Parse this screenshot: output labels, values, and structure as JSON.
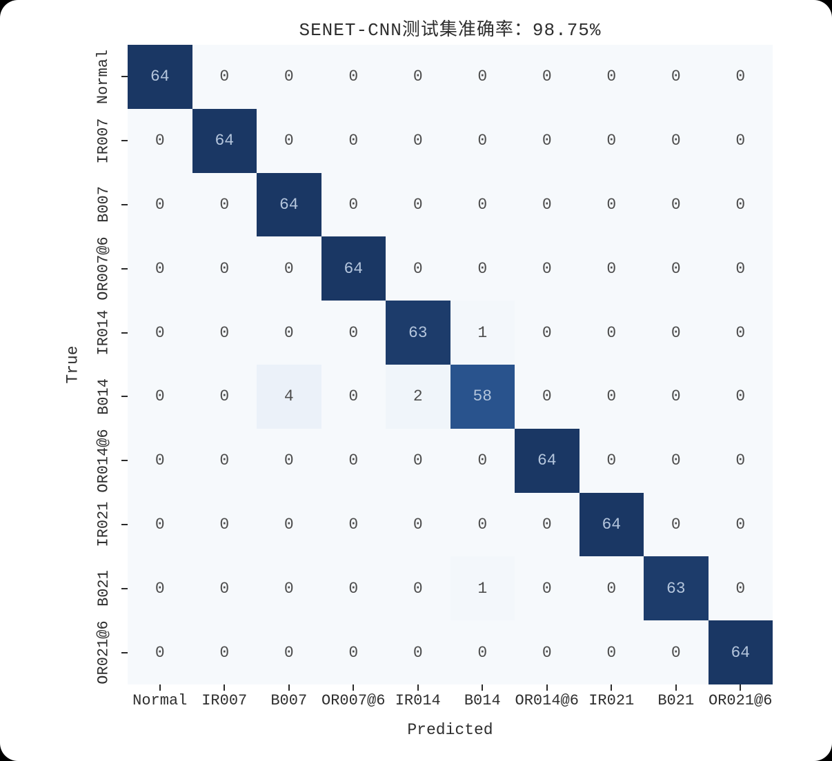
{
  "chart_data": {
    "type": "heatmap",
    "title": "SENET-CNN测试集准确率：98.75%",
    "xlabel": "Predicted",
    "ylabel": "True",
    "categories": [
      "Normal",
      "IR007",
      "B007",
      "OR007@6",
      "IR014",
      "B014",
      "OR014@6",
      "IR021",
      "B021",
      "OR021@6"
    ],
    "matrix": [
      [
        64,
        0,
        0,
        0,
        0,
        0,
        0,
        0,
        0,
        0
      ],
      [
        0,
        64,
        0,
        0,
        0,
        0,
        0,
        0,
        0,
        0
      ],
      [
        0,
        0,
        64,
        0,
        0,
        0,
        0,
        0,
        0,
        0
      ],
      [
        0,
        0,
        0,
        64,
        0,
        0,
        0,
        0,
        0,
        0
      ],
      [
        0,
        0,
        0,
        0,
        63,
        1,
        0,
        0,
        0,
        0
      ],
      [
        0,
        0,
        4,
        0,
        2,
        58,
        0,
        0,
        0,
        0
      ],
      [
        0,
        0,
        0,
        0,
        0,
        0,
        64,
        0,
        0,
        0
      ],
      [
        0,
        0,
        0,
        0,
        0,
        0,
        0,
        64,
        0,
        0
      ],
      [
        0,
        0,
        0,
        0,
        0,
        1,
        0,
        0,
        63,
        0
      ],
      [
        0,
        0,
        0,
        0,
        0,
        0,
        0,
        0,
        0,
        64
      ]
    ],
    "vmin": 0,
    "vmax": 64,
    "grid": false,
    "legend": "none",
    "colormap_stops": [
      [
        0.0,
        "#f6f9fc"
      ],
      [
        0.25,
        "#c9daee"
      ],
      [
        0.5,
        "#6b9bcb"
      ],
      [
        0.9,
        "#2a5590"
      ],
      [
        1.0,
        "#1a3764"
      ]
    ]
  },
  "colors": {
    "figure_background": "#ffffff",
    "corner_background": "#000000",
    "tick_color": "#2a2a2a",
    "label_text": "#2e2e2e",
    "cell_text_dark_bg": "#b4c5dc",
    "cell_text_light_bg": "#4d4d4d"
  }
}
